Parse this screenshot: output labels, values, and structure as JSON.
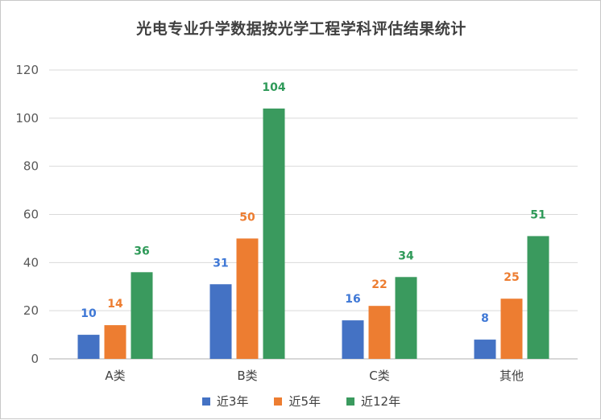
{
  "chart_data": {
    "type": "bar",
    "title": "光电专业升学数据按光学工程学科评估结果统计",
    "categories": [
      "A类",
      "B类",
      "C类",
      "其他"
    ],
    "series": [
      {
        "name": "近3年",
        "color": "#4472C4",
        "label_color": "#3F78D6",
        "values": [
          10,
          31,
          16,
          8
        ]
      },
      {
        "name": "近5年",
        "color": "#ED7D31",
        "label_color": "#ED7D31",
        "values": [
          14,
          50,
          22,
          25
        ]
      },
      {
        "name": "近12年",
        "color": "#3A9A5E",
        "label_color": "#2F9A59",
        "values": [
          36,
          104,
          34,
          51
        ]
      }
    ],
    "yticks": [
      0,
      20,
      40,
      60,
      80,
      100,
      120
    ],
    "ylim": [
      0,
      120
    ],
    "grid": true,
    "legend_position": "bottom"
  }
}
